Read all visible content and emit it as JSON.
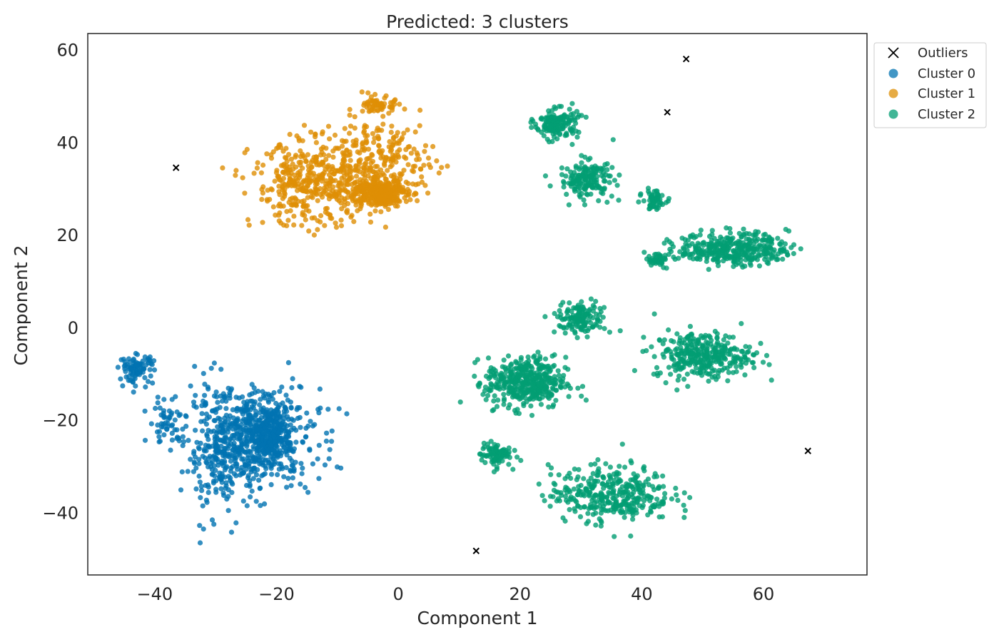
{
  "chart_data": {
    "type": "scatter",
    "title": "Predicted: 3 clusters",
    "xlabel": "Component 1",
    "ylabel": "Component 2",
    "xlim": [
      -51,
      77
    ],
    "ylim": [
      -53.5,
      63.5
    ],
    "xticks": [
      -40,
      -20,
      0,
      20,
      40,
      60
    ],
    "yticks": [
      -40,
      -20,
      0,
      20,
      40,
      60
    ],
    "xtick_labels": [
      "−40",
      "−20",
      "0",
      "20",
      "40",
      "60"
    ],
    "ytick_labels": [
      "−40",
      "−20",
      "0",
      "20",
      "40",
      "60"
    ],
    "grid": false,
    "legend_position": "outside-top-right",
    "legend": [
      "Outliers",
      "Cluster 0",
      "Cluster 1",
      "Cluster 2"
    ],
    "colors": {
      "outliers": "#000000",
      "cluster0": "#0173b2",
      "cluster1": "#de8f05",
      "cluster2": "#029e73"
    },
    "outliers": [
      [
        -36.5,
        34.5
      ],
      [
        12.8,
        -48.3
      ],
      [
        44.2,
        46.5
      ],
      [
        47.3,
        58.0
      ],
      [
        67.3,
        -26.7
      ]
    ],
    "series": [
      {
        "name": "Cluster 0",
        "color": "#0173b2",
        "regions": [
          {
            "cx": -23,
            "cy": -24,
            "rx": 10,
            "ry": 11,
            "n": 420
          },
          {
            "cx": -29,
            "cy": -27,
            "rx": 6,
            "ry": 13,
            "n": 260
          },
          {
            "cx": -43,
            "cy": -9,
            "rx": 2.8,
            "ry": 3,
            "n": 90
          },
          {
            "cx": -38,
            "cy": -20,
            "rx": 3,
            "ry": 5,
            "n": 50
          },
          {
            "cx": -21,
            "cy": -23,
            "rx": 3.6,
            "ry": 6.5,
            "n": 300
          }
        ]
      },
      {
        "name": "Cluster 1",
        "color": "#de8f05",
        "regions": [
          {
            "cx": -14,
            "cy": 31,
            "rx": 10,
            "ry": 9,
            "n": 420
          },
          {
            "cx": -3,
            "cy": 36,
            "rx": 9,
            "ry": 9,
            "n": 260
          },
          {
            "cx": -3,
            "cy": 29,
            "rx": 4.5,
            "ry": 2.8,
            "n": 320
          },
          {
            "cx": -3,
            "cy": 48,
            "rx": 2.5,
            "ry": 1.8,
            "n": 60
          }
        ]
      },
      {
        "name": "Cluster 2",
        "color": "#029e73",
        "regions": [
          {
            "cx": 26,
            "cy": 44,
            "rx": 3.5,
            "ry": 3.2,
            "n": 150
          },
          {
            "cx": 31,
            "cy": 32,
            "rx": 4.5,
            "ry": 4,
            "n": 170
          },
          {
            "cx": 42,
            "cy": 27.5,
            "rx": 1.8,
            "ry": 2,
            "n": 60
          },
          {
            "cx": 42.5,
            "cy": 14.5,
            "rx": 2,
            "ry": 1.5,
            "n": 40
          },
          {
            "cx": 55,
            "cy": 17,
            "rx": 9,
            "ry": 3.5,
            "n": 360
          },
          {
            "cx": 30,
            "cy": 2,
            "rx": 4,
            "ry": 3.5,
            "n": 140
          },
          {
            "cx": 21,
            "cy": -12,
            "rx": 6.5,
            "ry": 5.5,
            "n": 420
          },
          {
            "cx": 50,
            "cy": -6,
            "rx": 8,
            "ry": 5,
            "n": 330
          },
          {
            "cx": 16,
            "cy": -27.5,
            "rx": 2.5,
            "ry": 2.5,
            "n": 90
          },
          {
            "cx": 35,
            "cy": -36,
            "rx": 10,
            "ry": 6,
            "n": 360
          }
        ]
      }
    ]
  }
}
